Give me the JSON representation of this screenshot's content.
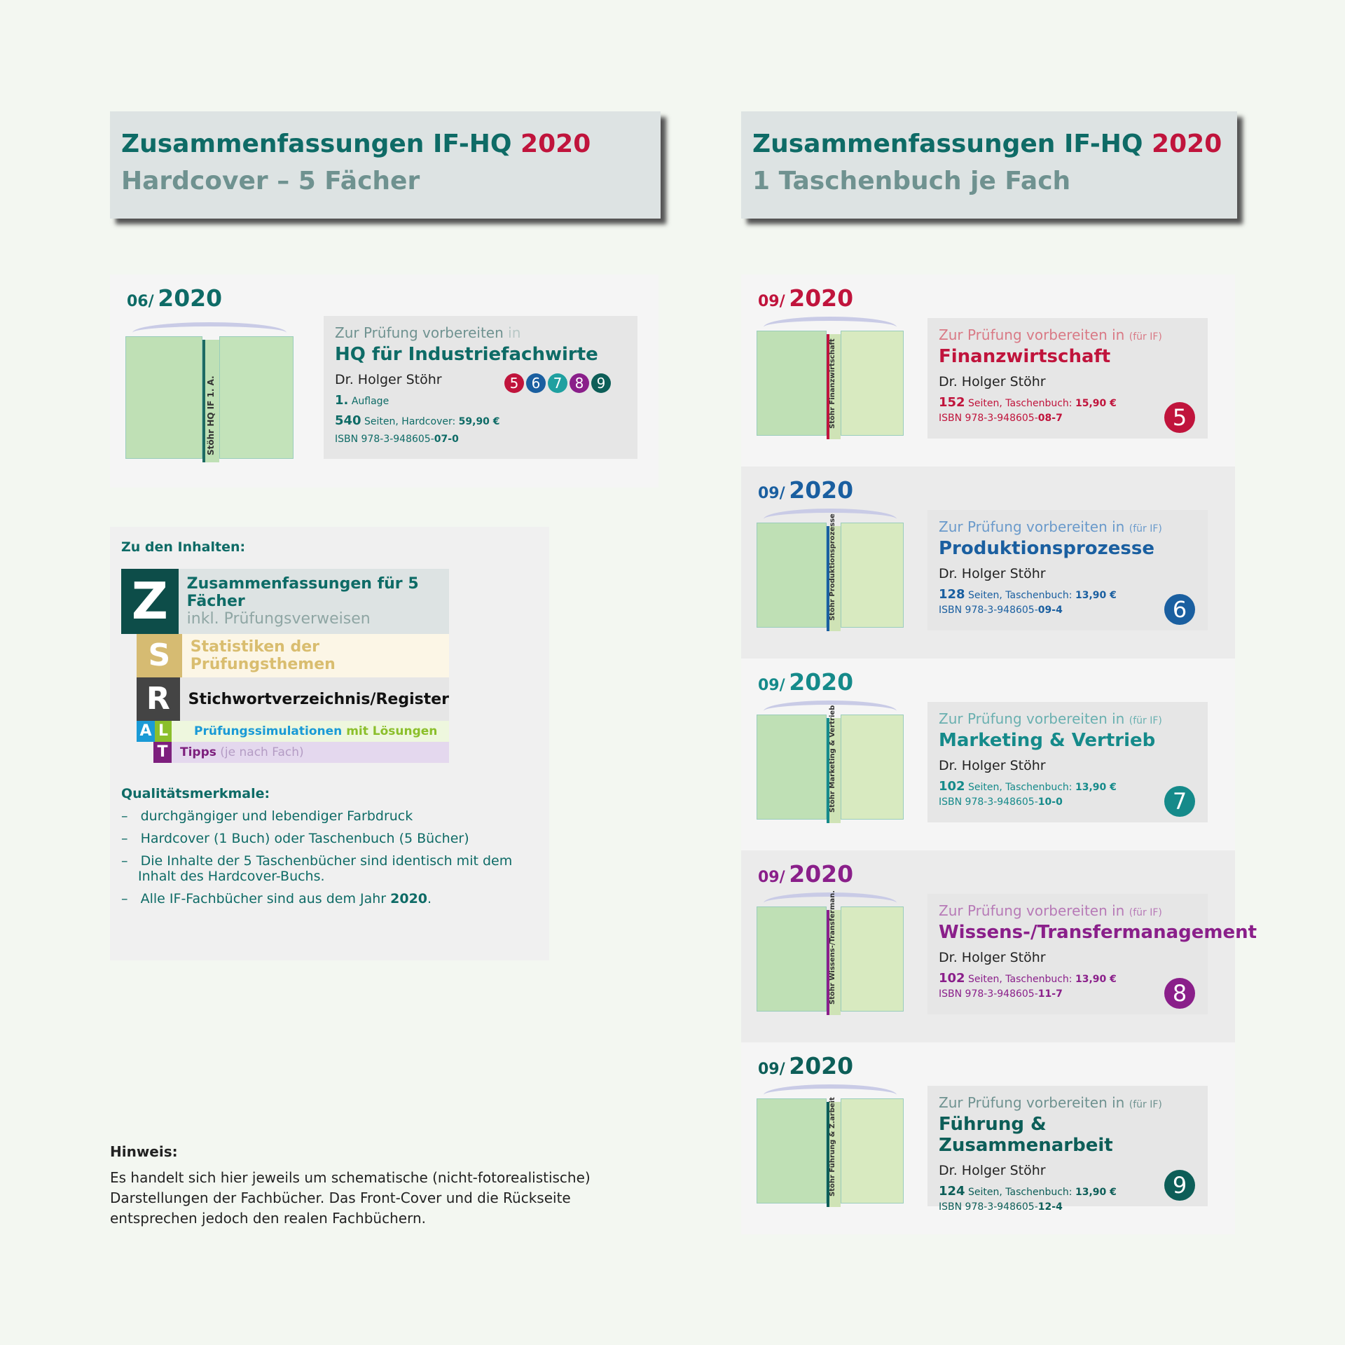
{
  "headers": [
    {
      "title": "Zusammenfassungen IF-HQ",
      "year": "2020",
      "subtitle": "Hardcover – 5 Fächer"
    },
    {
      "title": "Zusammenfassungen IF-HQ",
      "year": "2020",
      "subtitle": "1 Taschenbuch je Fach"
    }
  ],
  "hardcover": {
    "month": "06/",
    "year": "2020",
    "spine": "Stöhr HQ IF 1. A.",
    "pre": "Zur Prüfung vorbereiten",
    "pre_in": "in",
    "title": "HQ für Industriefachwirte",
    "author": "Dr. Holger Stöhr",
    "numbers": [
      "5",
      "6",
      "7",
      "8",
      "9"
    ],
    "edition_num": "1.",
    "edition": "Auflage",
    "pages": "540",
    "pages_text": "Seiten, Hardcover:",
    "price": "59,90 €",
    "isbn_pre": "ISBN 978-3-948605-",
    "isbn_end": "07-0"
  },
  "books": [
    {
      "month": "09/",
      "year": "2020",
      "pre": "Zur Prüfung vorbereiten in",
      "pre_small": "(für IF)",
      "title": "Finanzwirtschaft",
      "author": "Dr. Holger Stöhr",
      "pages": "152",
      "pages_text": "Seiten, Taschenbuch:",
      "price": "15,90 €",
      "isbn_pre": "ISBN 978-3-948605-",
      "isbn_end": "08-7",
      "number": "5",
      "color": "#c0143c",
      "pre_color": "#d97a86",
      "spine": "Stöhr  Finanzwirtschaft"
    },
    {
      "month": "09/",
      "year": "2020",
      "pre": "Zur Prüfung vorbereiten in",
      "pre_small": "(für IF)",
      "title": "Produktionsprozesse",
      "author": "Dr. Holger Stöhr",
      "pages": "128",
      "pages_text": "Seiten, Taschenbuch:",
      "price": "13,90 €",
      "isbn_pre": "ISBN 978-3-948605-",
      "isbn_end": "09-4",
      "number": "6",
      "color": "#1a5fa0",
      "pre_color": "#6a9acb",
      "spine": "Stöhr  Produktionsprozesse"
    },
    {
      "month": "09/",
      "year": "2020",
      "pre": "Zur Prüfung vorbereiten in",
      "pre_small": "(für IF)",
      "title": "Marketing & Vertrieb",
      "author": "Dr. Holger Stöhr",
      "pages": "102",
      "pages_text": "Seiten, Taschenbuch:",
      "price": "13,90 €",
      "isbn_pre": "ISBN 978-3-948605-",
      "isbn_end": "10-0",
      "number": "7",
      "color": "#158a8a",
      "pre_color": "#6ab0b0",
      "spine": "Stöhr  Marketing & Vertrieb"
    },
    {
      "month": "09/",
      "year": "2020",
      "pre": "Zur Prüfung vorbereiten in",
      "pre_small": "(für IF)",
      "title": "Wissens-/Transfermanagement",
      "author": "Dr. Holger Stöhr",
      "pages": "102",
      "pages_text": "Seiten, Taschenbuch:",
      "price": "13,90 €",
      "isbn_pre": "ISBN 978-3-948605-",
      "isbn_end": "11-7",
      "number": "8",
      "color": "#8a1f8a",
      "pre_color": "#b77ab7",
      "spine": "Stöhr  Wissens-/Transferman."
    },
    {
      "month": "09/",
      "year": "2020",
      "pre": "Zur Prüfung vorbereiten in",
      "pre_small": "(für IF)",
      "title": "Führung & Zusammenarbeit",
      "author": "Dr. Holger Stöhr",
      "pages": "124",
      "pages_text": "Seiten, Taschenbuch:",
      "price": "13,90 €",
      "isbn_pre": "ISBN 978-3-948605-",
      "isbn_end": "12-4",
      "number": "9",
      "color": "#0d5e58",
      "pre_color": "#6f9290",
      "spine": "Stöhr  Führung & Z.arbeit"
    }
  ],
  "contents": {
    "heading": "Zu den Inhalten:",
    "z": {
      "letter": "Z",
      "line1": "Zusammenfassungen für 5 Fächer",
      "line2": "inkl. Prüfungsverweisen"
    },
    "s": {
      "letter": "S",
      "text": "Statistiken der Prüfungsthemen"
    },
    "r": {
      "letter": "R",
      "text": "Stichwortverzeichnis/Register"
    },
    "al": {
      "a": "A",
      "l": "L",
      "text1": "Prüfungssimulationen",
      "text2": "mit Lösungen"
    },
    "t": {
      "letter": "T",
      "text1": "Tipps",
      "text2": "(je nach Fach)"
    },
    "quality_heading": "Qualitätsmerkmale:",
    "quality": [
      "durchgängiger und lebendiger Farbdruck",
      "Hardcover (1 Buch) oder Taschenbuch (5 Bücher)",
      "Die Inhalte der 5 Taschenbücher sind identisch mit dem Inhalt des Hardcover-Buchs."
    ],
    "quality_last": "Alle IF-Fachbücher sind aus dem Jahr",
    "quality_last_year": "2020",
    "quality_last_end": "."
  },
  "note": {
    "heading": "Hinweis:",
    "text": "Es handelt sich hier jeweils um schematische (nicht-fotorealistische) Darstellungen der Fachbücher. Das Front-Cover und die Rückseite entsprechen jedoch den realen Fachbüchern."
  },
  "colors": {
    "teal": "#0e6b66",
    "red": "#c0143c",
    "blue": "#1a5fa0",
    "cyan": "#158a8a",
    "purple": "#8a1f8a",
    "darkteal": "#0d5e58"
  }
}
